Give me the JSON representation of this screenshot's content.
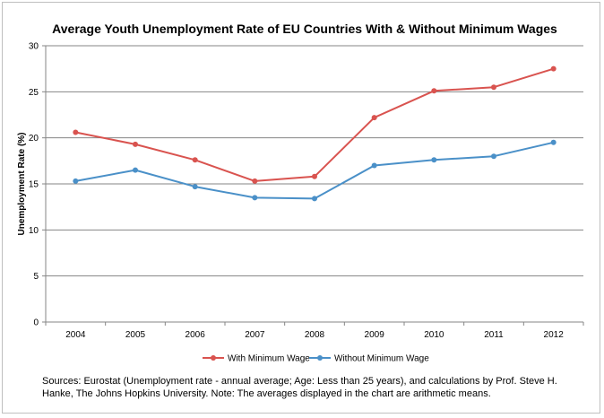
{
  "chart_data": {
    "type": "line",
    "title": "Average Youth Unemployment Rate of EU Countries With & Without Minimum Wages",
    "ylabel": "Unemployment Rate (%)",
    "xlabel": "",
    "categories": [
      "2004",
      "2005",
      "2006",
      "2007",
      "2008",
      "2009",
      "2010",
      "2011",
      "2012"
    ],
    "ylim": [
      0,
      30
    ],
    "yticks": [
      0,
      5,
      10,
      15,
      20,
      25,
      30
    ],
    "grid": true,
    "legend_position": "bottom",
    "series": [
      {
        "name": "With Minimum Wage",
        "color": "#d9534f",
        "values": [
          20.6,
          19.3,
          17.6,
          15.3,
          15.8,
          22.2,
          25.1,
          25.5,
          27.5
        ]
      },
      {
        "name": "Without Minimum Wage",
        "color": "#4a90c8",
        "values": [
          15.3,
          16.5,
          14.7,
          13.5,
          13.4,
          17.0,
          17.6,
          18.0,
          19.5
        ]
      }
    ]
  },
  "footnote": "Sources: Eurostat (Unemployment rate - annual average; Age: Less than 25 years), and calculations by Prof. Steve H. Hanke, The Johns Hopkins University. Note: The averages displayed in the chart are arithmetic means."
}
